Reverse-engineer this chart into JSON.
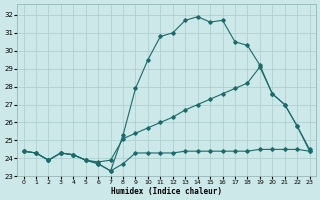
{
  "xlabel": "Humidex (Indice chaleur)",
  "bg_color": "#cce8e8",
  "grid_color": "#aacccc",
  "line_color": "#1a6b6b",
  "xlim": [
    -0.5,
    23.5
  ],
  "ylim": [
    23.0,
    32.6
  ],
  "yticks": [
    23,
    24,
    25,
    26,
    27,
    28,
    29,
    30,
    31,
    32
  ],
  "xticks": [
    0,
    1,
    2,
    3,
    4,
    5,
    6,
    7,
    8,
    9,
    10,
    11,
    12,
    13,
    14,
    15,
    16,
    17,
    18,
    19,
    20,
    21,
    22,
    23
  ],
  "line3_x": [
    0,
    1,
    2,
    3,
    4,
    5,
    6,
    7,
    8,
    9,
    10,
    11,
    12,
    13,
    14,
    15,
    16,
    17,
    18,
    19,
    20,
    21,
    22,
    23
  ],
  "line3_y": [
    24.4,
    24.3,
    23.9,
    24.3,
    24.2,
    23.9,
    23.7,
    23.3,
    25.3,
    27.9,
    29.5,
    30.8,
    31.0,
    31.7,
    31.9,
    31.6,
    31.7,
    30.5,
    30.3,
    29.2,
    27.6,
    27.0,
    25.8,
    24.5
  ],
  "line2_x": [
    0,
    1,
    2,
    3,
    4,
    5,
    6,
    7,
    8,
    9,
    10,
    11,
    12,
    13,
    14,
    15,
    16,
    17,
    18,
    19,
    20,
    21,
    22,
    23
  ],
  "line2_y": [
    24.4,
    24.3,
    23.9,
    24.3,
    24.2,
    23.9,
    23.8,
    23.9,
    25.1,
    25.4,
    25.7,
    26.0,
    26.3,
    26.7,
    27.0,
    27.3,
    27.6,
    27.9,
    28.2,
    29.1,
    27.6,
    27.0,
    25.8,
    24.4
  ],
  "line1_x": [
    0,
    1,
    2,
    3,
    4,
    5,
    6,
    7,
    8,
    9,
    10,
    11,
    12,
    13,
    14,
    15,
    16,
    17,
    18,
    19,
    20,
    21,
    22,
    23
  ],
  "line1_y": [
    24.4,
    24.3,
    23.9,
    24.3,
    24.2,
    23.9,
    23.7,
    23.3,
    23.7,
    24.3,
    24.3,
    24.3,
    24.3,
    24.4,
    24.4,
    24.4,
    24.4,
    24.4,
    24.4,
    24.5,
    24.5,
    24.5,
    24.5,
    24.4
  ]
}
